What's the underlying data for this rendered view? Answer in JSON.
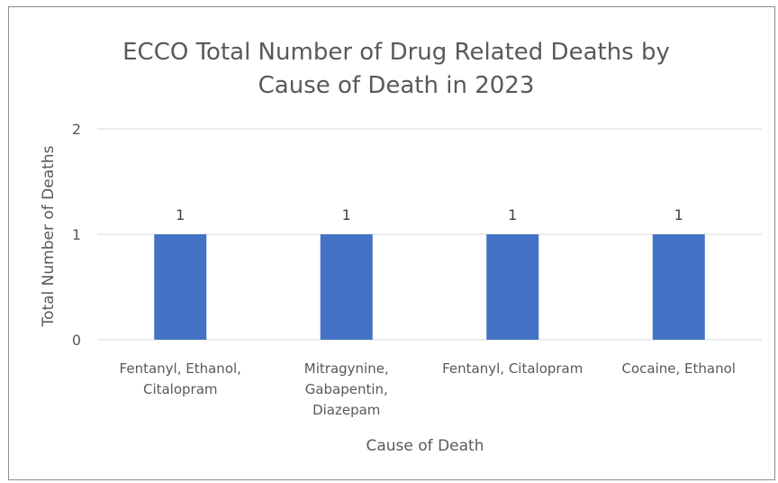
{
  "chart_data": {
    "type": "bar",
    "title_lines": [
      "ECCO Total Number of Drug Related Deaths by",
      "Cause of Death in 2023"
    ],
    "xlabel": "Cause of Death",
    "ylabel": "Total Number of Deaths",
    "categories": [
      [
        "Fentanyl, Ethanol,",
        "Citalopram"
      ],
      [
        "Mitragynine,",
        "Gabapentin,",
        "Diazepam"
      ],
      [
        "Fentanyl, Citalopram"
      ],
      [
        "Cocaine, Ethanol"
      ]
    ],
    "values": [
      1,
      1,
      1,
      1
    ],
    "data_labels": [
      "1",
      "1",
      "1",
      "1"
    ],
    "yticks": [
      0,
      1,
      2
    ],
    "ylim": [
      0,
      2
    ],
    "grid": true,
    "legend": "none",
    "colors": {
      "bar": "#4472C4",
      "grid": "#d9d9d9",
      "text": "#595959"
    }
  }
}
